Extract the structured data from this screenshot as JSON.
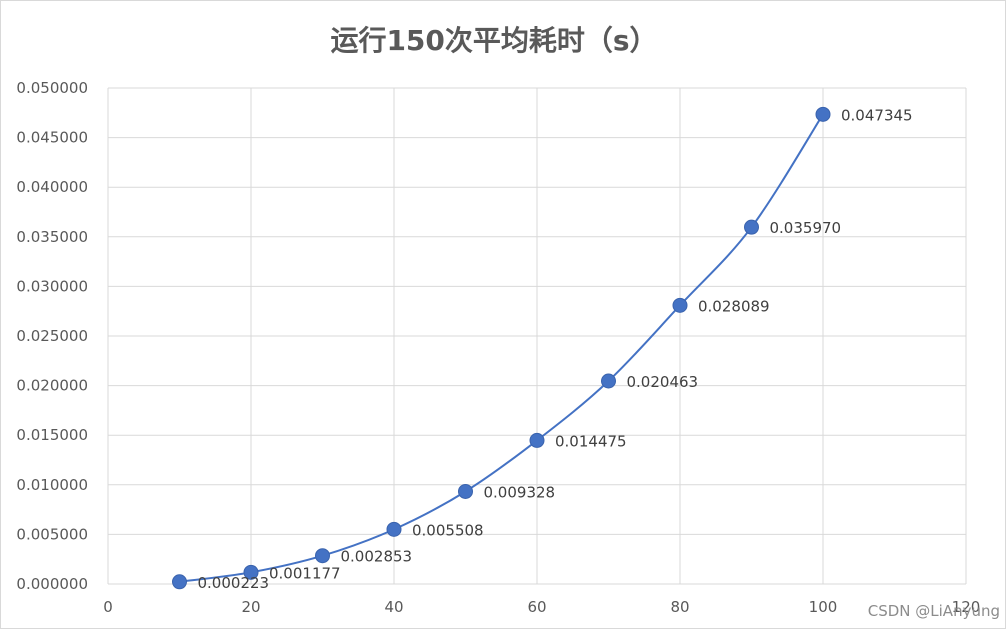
{
  "chart_data": {
    "type": "line",
    "title": "运行150次平均耗时（s）",
    "xlabel": "",
    "ylabel": "",
    "xlim": [
      0,
      120
    ],
    "ylim": [
      0,
      0.05
    ],
    "x_ticks": [
      "0",
      "20",
      "40",
      "60",
      "80",
      "100",
      "120"
    ],
    "y_ticks": [
      "0.000000",
      "0.005000",
      "0.010000",
      "0.015000",
      "0.020000",
      "0.025000",
      "0.030000",
      "0.035000",
      "0.040000",
      "0.045000",
      "0.050000"
    ],
    "grid": true,
    "legend": "none",
    "series": [
      {
        "color": "#4472c4",
        "x": [
          10,
          20,
          30,
          40,
          50,
          60,
          70,
          80,
          90,
          100
        ],
        "y": [
          0.000223,
          0.001177,
          0.002853,
          0.005508,
          0.009328,
          0.014475,
          0.020463,
          0.028089,
          0.03597,
          0.047345
        ],
        "labels": [
          "0.000223",
          "0.001177",
          "0.002853",
          "0.005508",
          "0.009328",
          "0.014475",
          "0.020463",
          "0.028089",
          "0.035970",
          "0.047345"
        ]
      }
    ]
  },
  "watermark": "CSDN @LiAnyung"
}
